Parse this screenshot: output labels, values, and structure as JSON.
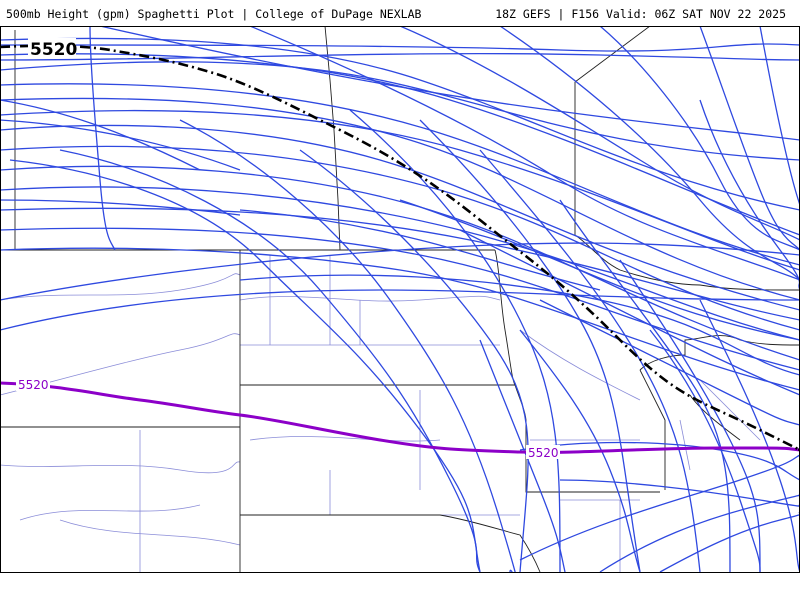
{
  "header": {
    "title": "500mb Height (gpm) Spaghetti Plot | College of DuPage NEXLAB",
    "run_info": "18Z GEFS | F156 Valid: 06Z SAT NOV 22 2025"
  },
  "map": {
    "level": "500mb",
    "contour_labels": {
      "mean": "5520",
      "climo": "5520"
    },
    "colors": {
      "members": "#2f49e0",
      "climo": "#8c00c8",
      "mean": "#000000",
      "state_borders": "#222222",
      "county_borders": "#8a8cd8"
    }
  }
}
